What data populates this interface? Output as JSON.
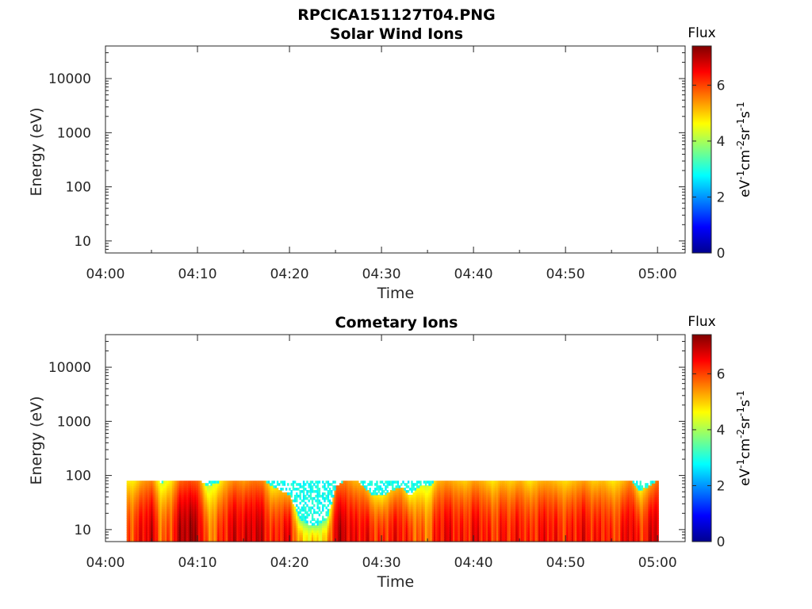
{
  "figure_title": "RPCICA151127T04.PNG",
  "chart_data": [
    {
      "type": "heatmap",
      "title": "Solar Wind Ions",
      "xlabel": "Time",
      "ylabel": "Energy (eV)",
      "x_ticks": [
        "04:00",
        "04:10",
        "04:20",
        "04:30",
        "04:40",
        "04:50",
        "05:00"
      ],
      "xlim_minutes": [
        0,
        63
      ],
      "y_scale": "log",
      "y_ticks": [
        10,
        100,
        1000,
        10000
      ],
      "y_tick_labels": [
        "10",
        "100",
        "1000",
        "10000"
      ],
      "ylim": [
        6,
        40000
      ],
      "colorbar": {
        "title": "Flux",
        "label": "eV-1cm-2sr-1s-1",
        "range": [
          0,
          7.4
        ],
        "ticks": [
          0,
          2,
          4,
          6
        ],
        "colormap": "jet"
      },
      "data": "empty"
    },
    {
      "type": "heatmap",
      "title": "Cometary Ions",
      "xlabel": "Time",
      "ylabel": "Energy (eV)",
      "x_ticks": [
        "04:00",
        "04:10",
        "04:20",
        "04:30",
        "04:40",
        "04:50",
        "05:00"
      ],
      "xlim_minutes": [
        0,
        63
      ],
      "y_scale": "log",
      "y_ticks": [
        10,
        100,
        1000,
        10000
      ],
      "y_tick_labels": [
        "10",
        "100",
        "1000",
        "10000"
      ],
      "ylim": [
        6,
        40000
      ],
      "colorbar": {
        "title": "Flux",
        "label": "eV-1cm-2sr-1s-1",
        "range": [
          0,
          7.4
        ],
        "ticks": [
          0,
          2,
          4,
          6
        ],
        "colormap": "jet"
      },
      "data_time_range_minutes": [
        2.3,
        60
      ],
      "energy_range_eV": [
        6,
        80
      ],
      "time_minutes": [
        3,
        4,
        5,
        6,
        7,
        8,
        9,
        10,
        11,
        12,
        13,
        14,
        15,
        16,
        17,
        18,
        19,
        20,
        21,
        22,
        23,
        24,
        25,
        26,
        27,
        28,
        29,
        30,
        31,
        32,
        33,
        34,
        35,
        36,
        37,
        38,
        39,
        40,
        41,
        42,
        43,
        44,
        45,
        46,
        47,
        48,
        49,
        50,
        51,
        52,
        53,
        54,
        55,
        56,
        57,
        58,
        59,
        60
      ],
      "peak_flux": [
        6.0,
        6.6,
        6.8,
        5.6,
        6.0,
        7.0,
        7.2,
        7.0,
        5.5,
        5.8,
        6.4,
        6.8,
        6.6,
        6.9,
        6.8,
        6.0,
        6.4,
        6.6,
        5.0,
        4.8,
        4.8,
        5.0,
        7.0,
        6.8,
        6.4,
        6.6,
        6.2,
        6.0,
        6.4,
        6.5,
        6.0,
        5.8,
        5.6,
        6.4,
        6.6,
        6.4,
        6.2,
        6.6,
        6.4,
        6.0,
        6.4,
        6.2,
        6.5,
        6.0,
        6.4,
        6.5,
        6.3,
        6.1,
        6.4,
        6.6,
        6.2,
        6.4,
        6.0,
        6.3,
        6.8,
        6.0,
        6.6,
        7.0
      ],
      "top_energy_eV": [
        80,
        80,
        80,
        70,
        80,
        80,
        80,
        80,
        60,
        70,
        80,
        80,
        80,
        80,
        80,
        60,
        50,
        40,
        15,
        12,
        12,
        15,
        60,
        80,
        80,
        60,
        40,
        40,
        50,
        60,
        40,
        60,
        60,
        80,
        80,
        80,
        80,
        80,
        80,
        80,
        80,
        80,
        80,
        80,
        80,
        80,
        80,
        80,
        80,
        80,
        80,
        80,
        80,
        80,
        80,
        50,
        60,
        80
      ]
    }
  ]
}
